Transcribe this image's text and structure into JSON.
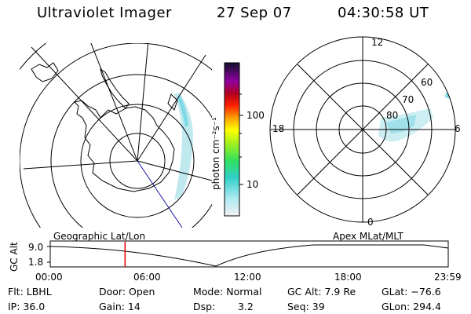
{
  "header": {
    "title": "Ultraviolet Imager",
    "date": "27 Sep 07",
    "time": "04:30:58 UT"
  },
  "colorbar": {
    "unit_label": "photon cm⁻²s⁻¹",
    "ticks": [
      "100",
      "10"
    ]
  },
  "polar_plot": {
    "mlt_labels": {
      "top": "12",
      "left": "18",
      "right": "6",
      "bottom": "0"
    },
    "lat_labels": [
      "60",
      "70",
      "80"
    ]
  },
  "timeline": {
    "alt_label": "GC Alt",
    "y_ticks": [
      "9.0",
      "1.8"
    ],
    "left_caption": "Geographic Lat/Lon",
    "right_caption": "Apex MLat/MLT",
    "time_ticks": [
      "00:00",
      "06:00",
      "12:00",
      "18:00",
      "23:59"
    ],
    "current_time_fraction": 0.188
  },
  "status": {
    "flt": "Flt: LBHL",
    "ip": "IP: 36.0",
    "door": "Door: Open",
    "gain": "Gain: 14",
    "mode": "Mode: Normal",
    "dsp_label": "Dsp:",
    "dsp_value": "3.2",
    "gc_alt": "GC Alt: 7.9 Re",
    "seq": "Seq: 39",
    "glat": "GLat: −76.6",
    "glon": "GLon: 294.4"
  },
  "colors": {
    "aurora": "#7fd8e6",
    "timeline_marker": "#e00000",
    "axes": "#000000"
  }
}
